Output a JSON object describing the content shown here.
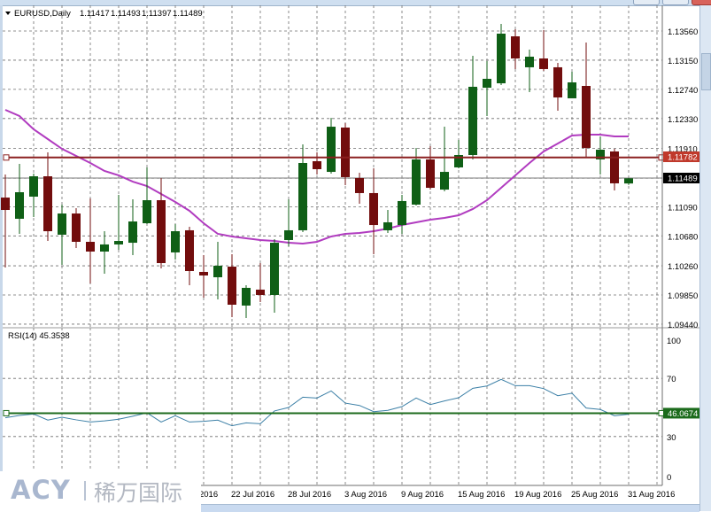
{
  "header": {
    "menu_icon": "triangle-down-icon",
    "symbol": "EURUSD,Daily",
    "open": "1.11417",
    "high": "1.11493",
    "low": "1.11397",
    "close": "1.11489"
  },
  "price_axis": {
    "ticks": [
      "1.13560",
      "1.13150",
      "1.12740",
      "1.12330",
      "1.11910",
      "1.11090",
      "1.10680",
      "1.10260",
      "1.09850",
      "1.09440"
    ],
    "current_price": "1.11489",
    "hline_price": "1.11782"
  },
  "rsi": {
    "label": "RSI(14) 45.3538",
    "ticks": [
      "100",
      "70",
      "30",
      "0"
    ],
    "level": "46.0674"
  },
  "x_axis": {
    "ticks": [
      "18 Jul 2016",
      "22 Jul 2016",
      "28 Jul 2016",
      "3 Aug 2016",
      "9 Aug 2016",
      "15 Aug 2016",
      "19 Aug 2016",
      "25 Aug 2016",
      "31 Aug 2016"
    ]
  },
  "logo": {
    "latin": "ACY",
    "chinese": "稀万国际"
  },
  "colors": {
    "bull": "#0f5f16",
    "bear": "#720d0d",
    "ma": "#b13cc0",
    "hline": "#8b2020",
    "rsi": "#3b7fa6",
    "rsi_level": "#1c6b1c",
    "grid": "#6e6e6e"
  },
  "chart_data": [
    {
      "type": "candlestick",
      "title": "EURUSD,Daily",
      "ylim": [
        1.0944,
        1.1356
      ],
      "grid": true,
      "candles": [
        {
          "d": "30 Jun 2016",
          "o": 1.11219,
          "h": 1.11543,
          "l": 1.10236,
          "c": 1.11045
        },
        {
          "d": "1 Jul 2016",
          "o": 1.10921,
          "h": 1.11693,
          "l": 1.10709,
          "c": 1.11294
        },
        {
          "d": "4 Jul 2016",
          "o": 1.11232,
          "h": 1.11556,
          "l": 1.10946,
          "c": 1.11518
        },
        {
          "d": "5 Jul 2016",
          "o": 1.11518,
          "h": 1.11854,
          "l": 1.10609,
          "c": 1.10746
        },
        {
          "d": "6 Jul 2016",
          "o": 1.10697,
          "h": 1.1112,
          "l": 1.10273,
          "c": 1.10995
        },
        {
          "d": "7 Jul 2016",
          "o": 1.10995,
          "h": 1.1107,
          "l": 1.1051,
          "c": 1.10597
        },
        {
          "d": "8 Jul 2016",
          "o": 1.10597,
          "h": 1.11207,
          "l": 1.10012,
          "c": 1.1046
        },
        {
          "d": "11 Jul 2016",
          "o": 1.1046,
          "h": 1.10746,
          "l": 1.10149,
          "c": 1.1056
        },
        {
          "d": "12 Jul 2016",
          "o": 1.1056,
          "h": 1.11257,
          "l": 1.10485,
          "c": 1.10609
        },
        {
          "d": "13 Jul 2016",
          "o": 1.10584,
          "h": 1.11195,
          "l": 1.1041,
          "c": 1.10883
        },
        {
          "d": "14 Jul 2016",
          "o": 1.10858,
          "h": 1.11643,
          "l": 1.10846,
          "c": 1.11182
        },
        {
          "d": "15 Jul 2016",
          "o": 1.11182,
          "h": 1.11493,
          "l": 1.10223,
          "c": 1.10298
        },
        {
          "d": "18 Jul 2016",
          "o": 1.10448,
          "h": 1.10846,
          "l": 1.10348,
          "c": 1.10746
        },
        {
          "d": "19 Jul 2016",
          "o": 1.10759,
          "h": 1.10809,
          "l": 1.09987,
          "c": 1.10186
        },
        {
          "d": "20 Jul 2016",
          "o": 1.10174,
          "h": 1.1041,
          "l": 1.09813,
          "c": 1.10124
        },
        {
          "d": "21 Jul 2016",
          "o": 1.10099,
          "h": 1.10597,
          "l": 1.09788,
          "c": 1.10261
        },
        {
          "d": "22 Jul 2016",
          "o": 1.10248,
          "h": 1.10423,
          "l": 1.09539,
          "c": 1.09713
        },
        {
          "d": "25 Jul 2016",
          "o": 1.09701,
          "h": 1.09987,
          "l": 1.09526,
          "c": 1.0995
        },
        {
          "d": "26 Jul 2016",
          "o": 1.09925,
          "h": 1.10298,
          "l": 1.0975,
          "c": 1.0985
        },
        {
          "d": "27 Jul 2016",
          "o": 1.0985,
          "h": 1.10634,
          "l": 1.09601,
          "c": 1.10584
        },
        {
          "d": "28 Jul 2016",
          "o": 1.10622,
          "h": 1.11195,
          "l": 1.10535,
          "c": 1.10759
        },
        {
          "d": "29 Jul 2016",
          "o": 1.10759,
          "h": 1.11966,
          "l": 1.10734,
          "c": 1.11705
        },
        {
          "d": "1 Aug 2016",
          "o": 1.1173,
          "h": 1.11854,
          "l": 1.11543,
          "c": 1.11618
        },
        {
          "d": "2 Aug 2016",
          "o": 1.1158,
          "h": 1.1234,
          "l": 1.11556,
          "c": 1.12215
        },
        {
          "d": "3 Aug 2016",
          "o": 1.12203,
          "h": 1.12265,
          "l": 1.11394,
          "c": 1.11506
        },
        {
          "d": "4 Aug 2016",
          "o": 1.11493,
          "h": 1.11568,
          "l": 1.11132,
          "c": 1.11282
        },
        {
          "d": "5 Aug 2016",
          "o": 1.11282,
          "h": 1.1163,
          "l": 1.10423,
          "c": 1.10833
        },
        {
          "d": "8 Aug 2016",
          "o": 1.10759,
          "h": 1.11045,
          "l": 1.10721,
          "c": 1.10871
        },
        {
          "d": "9 Aug 2016",
          "o": 1.10833,
          "h": 1.11257,
          "l": 1.10709,
          "c": 1.1117
        },
        {
          "d": "10 Aug 2016",
          "o": 1.1112,
          "h": 1.11917,
          "l": 1.11107,
          "c": 1.11755
        },
        {
          "d": "11 Aug 2016",
          "o": 1.11755,
          "h": 1.11942,
          "l": 1.11331,
          "c": 1.11356
        },
        {
          "d": "12 Aug 2016",
          "o": 1.11331,
          "h": 1.12215,
          "l": 1.11307,
          "c": 1.1158
        },
        {
          "d": "15 Aug 2016",
          "o": 1.11643,
          "h": 1.12029,
          "l": 1.1163,
          "c": 1.11817
        },
        {
          "d": "16 Aug 2016",
          "o": 1.11817,
          "h": 1.13211,
          "l": 1.11755,
          "c": 1.12776
        },
        {
          "d": "17 Aug 2016",
          "o": 1.12763,
          "h": 1.13137,
          "l": 1.12365,
          "c": 1.12888
        },
        {
          "d": "18 Aug 2016",
          "o": 1.12825,
          "h": 1.1366,
          "l": 1.12801,
          "c": 1.13523
        },
        {
          "d": "19 Aug 2016",
          "o": 1.13485,
          "h": 1.13585,
          "l": 1.13025,
          "c": 1.13174
        },
        {
          "d": "22 Aug 2016",
          "o": 1.1305,
          "h": 1.13299,
          "l": 1.12701,
          "c": 1.13199
        },
        {
          "d": "23 Aug 2016",
          "o": 1.13174,
          "h": 1.13572,
          "l": 1.13,
          "c": 1.13025
        },
        {
          "d": "24 Aug 2016",
          "o": 1.1305,
          "h": 1.13112,
          "l": 1.1244,
          "c": 1.12626
        },
        {
          "d": "25 Aug 2016",
          "o": 1.12614,
          "h": 1.12987,
          "l": 1.12614,
          "c": 1.12838
        },
        {
          "d": "26 Aug 2016",
          "o": 1.12788,
          "h": 1.13398,
          "l": 1.11792,
          "c": 1.11917
        },
        {
          "d": "29 Aug 2016",
          "o": 1.11755,
          "h": 1.12078,
          "l": 1.11543,
          "c": 1.11892
        },
        {
          "d": "30 Aug 2016",
          "o": 1.11867,
          "h": 1.11904,
          "l": 1.11319,
          "c": 1.11419
        },
        {
          "d": "31 Aug 2016",
          "o": 1.11417,
          "h": 1.11493,
          "l": 1.11397,
          "c": 1.11489
        }
      ],
      "moving_average": [
        1.12452,
        1.12365,
        1.12178,
        1.12041,
        1.11904,
        1.11805,
        1.11705,
        1.11593,
        1.11531,
        1.11443,
        1.11381,
        1.11269,
        1.11157,
        1.11033,
        1.10858,
        1.10709,
        1.10672,
        1.10647,
        1.10622,
        1.10609,
        1.10584,
        1.10572,
        1.10597,
        1.10672,
        1.10709,
        1.10721,
        1.10746,
        1.10784,
        1.10833,
        1.10871,
        1.10908,
        1.10933,
        1.1097,
        1.11058,
        1.11182,
        1.11356,
        1.11531,
        1.11705,
        1.11867,
        1.11979,
        1.12091,
        1.12103,
        1.12103,
        1.12078,
        1.12078
      ],
      "horizontal_line": 1.11782,
      "current_price": 1.11489
    },
    {
      "type": "line",
      "title": "RSI(14) 45.3538",
      "ylim": [
        0,
        100
      ],
      "yticks": [
        100,
        70,
        30,
        0
      ],
      "values": [
        42.9,
        44.5,
        45.5,
        41.3,
        43.3,
        41.5,
        40.0,
        40.8,
        41.9,
        44.0,
        46.3,
        40.0,
        44.3,
        40.0,
        40.5,
        41.3,
        37.4,
        39.4,
        38.8,
        47.6,
        50.0,
        57.1,
        56.5,
        61.4,
        53.0,
        51.4,
        47.1,
        48.0,
        50.6,
        56.5,
        52.0,
        54.5,
        56.7,
        63.2,
        64.8,
        69.3,
        65.0,
        65.0,
        63.0,
        58.1,
        59.8,
        49.6,
        48.6,
        44.3,
        45.35
      ],
      "level": 46.0674
    }
  ]
}
